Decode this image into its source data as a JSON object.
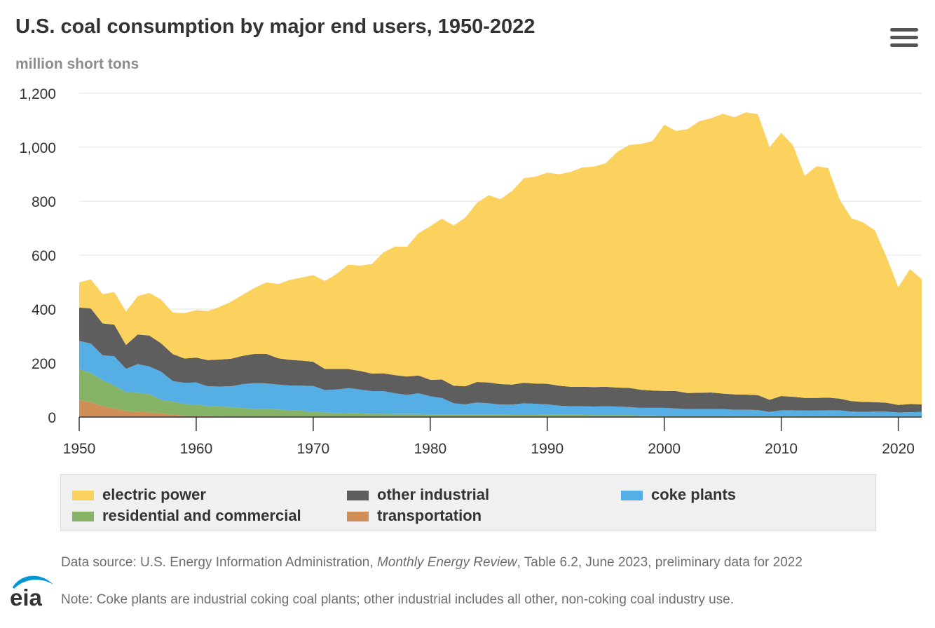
{
  "title": "U.S. coal consumption by major end users, 1950-2022",
  "units_label": "million short tons",
  "menu_icon": "hamburger-menu-icon",
  "colors": {
    "electric": "#fcd25f",
    "other": "#5e5e5e",
    "coke": "#55aee4",
    "residential": "#86b366",
    "transport": "#cf8f57",
    "grid": "#e2e2e2",
    "axis": "#333333"
  },
  "legend": {
    "electric": "electric power",
    "other": "other industrial",
    "coke": "coke plants",
    "residential": "residential and commercial",
    "transport": "transportation"
  },
  "source": {
    "prefix": "Data source: U.S. Energy Information Administration, ",
    "publication": "Monthly Energy Review",
    "suffix": ", Table 6.2, June 2023, preliminary data for 2022"
  },
  "note": "Note: Coke plants are industrial coking coal plants; other industrial includes all other, non-coking coal industry use.",
  "logo_text": "eia",
  "chart_data": {
    "type": "area",
    "stacked": true,
    "title": "U.S. coal consumption by major end users, 1950-2022",
    "ylabel": "million short tons",
    "xlabel": "",
    "xlim": [
      1950,
      2022
    ],
    "ylim": [
      0,
      1200
    ],
    "yticks": [
      0,
      200,
      400,
      600,
      800,
      1000,
      1200
    ],
    "ytick_labels": [
      "0",
      "200",
      "400",
      "600",
      "800",
      "1,000",
      "1,200"
    ],
    "xticks": [
      1950,
      1960,
      1970,
      1980,
      1990,
      2000,
      2010,
      2020
    ],
    "xtick_labels": [
      "1950",
      "1960",
      "1970",
      "1980",
      "1990",
      "2000",
      "2010",
      "2020"
    ],
    "legend_position": "bottom",
    "grid": true,
    "x": [
      1950,
      1951,
      1952,
      1953,
      1954,
      1955,
      1956,
      1957,
      1958,
      1959,
      1960,
      1961,
      1962,
      1963,
      1964,
      1965,
      1966,
      1967,
      1968,
      1969,
      1970,
      1971,
      1972,
      1973,
      1974,
      1975,
      1976,
      1977,
      1978,
      1979,
      1980,
      1981,
      1982,
      1983,
      1984,
      1985,
      1986,
      1987,
      1988,
      1989,
      1990,
      1991,
      1992,
      1993,
      1994,
      1995,
      1996,
      1997,
      1998,
      1999,
      2000,
      2001,
      2002,
      2003,
      2004,
      2005,
      2006,
      2007,
      2008,
      2009,
      2010,
      2011,
      2012,
      2013,
      2014,
      2015,
      2016,
      2017,
      2018,
      2019,
      2020,
      2021,
      2022
    ],
    "series": [
      {
        "name": "transportation",
        "key": "transport",
        "values": [
          63,
          55,
          40,
          32,
          22,
          20,
          17,
          14,
          8,
          6,
          4,
          3,
          2,
          2,
          1,
          1,
          1,
          1,
          1,
          1,
          1,
          1,
          1,
          1,
          1,
          1,
          1,
          1,
          1,
          1,
          1,
          1,
          1,
          1,
          1,
          1,
          1,
          1,
          1,
          1,
          1,
          1,
          1,
          1,
          1,
          1,
          1,
          1,
          1,
          1,
          1,
          1,
          1,
          1,
          1,
          1,
          1,
          1,
          1,
          1,
          1,
          1,
          1,
          1,
          1,
          1,
          1,
          1,
          1,
          1,
          1,
          1,
          1
        ]
      },
      {
        "name": "residential and commercial",
        "key": "residential",
        "values": [
          115,
          108,
          97,
          85,
          70,
          70,
          68,
          50,
          50,
          42,
          42,
          38,
          37,
          35,
          32,
          30,
          29,
          27,
          25,
          22,
          18,
          16,
          14,
          13,
          12,
          11,
          11,
          10,
          10,
          10,
          9,
          9,
          9,
          9,
          9,
          9,
          9,
          8,
          8,
          8,
          7,
          7,
          7,
          7,
          6,
          6,
          6,
          6,
          5,
          5,
          4,
          4,
          4,
          4,
          4,
          4,
          3,
          3,
          3,
          3,
          3,
          3,
          2,
          2,
          2,
          2,
          2,
          1,
          1,
          1,
          1,
          1,
          1
        ]
      },
      {
        "name": "coke plants",
        "key": "coke",
        "values": [
          104,
          109,
          92,
          108,
          87,
          106,
          102,
          104,
          75,
          79,
          82,
          73,
          74,
          77,
          89,
          95,
          95,
          92,
          91,
          93,
          96,
          83,
          87,
          93,
          89,
          84,
          84,
          77,
          71,
          77,
          67,
          61,
          41,
          37,
          44,
          41,
          36,
          37,
          42,
          40,
          39,
          34,
          32,
          32,
          32,
          33,
          32,
          30,
          28,
          28,
          29,
          27,
          24,
          25,
          25,
          24,
          23,
          23,
          22,
          15,
          21,
          21,
          21,
          21,
          22,
          22,
          17,
          17,
          18,
          18,
          15,
          16,
          17
        ]
      },
      {
        "name": "other industrial",
        "key": "other",
        "values": [
          124,
          130,
          118,
          117,
          88,
          110,
          115,
          105,
          100,
          90,
          92,
          97,
          100,
          102,
          105,
          108,
          109,
          98,
          95,
          93,
          90,
          78,
          76,
          71,
          69,
          65,
          66,
          67,
          68,
          66,
          61,
          68,
          65,
          67,
          76,
          77,
          76,
          74,
          76,
          75,
          76,
          74,
          72,
          72,
          72,
          72,
          70,
          71,
          67,
          64,
          63,
          64,
          60,
          60,
          61,
          58,
          57,
          56,
          55,
          45,
          53,
          50,
          47,
          47,
          47,
          43,
          39,
          37,
          35,
          33,
          28,
          30,
          28
        ]
      },
      {
        "name": "electric power",
        "key": "electric",
        "values": [
          93,
          108,
          108,
          121,
          124,
          142,
          158,
          162,
          154,
          168,
          176,
          182,
          195,
          212,
          227,
          245,
          265,
          275,
          296,
          308,
          321,
          326,
          353,
          387,
          390,
          406,
          448,
          477,
          481,
          527,
          569,
          596,
          594,
          625,
          664,
          694,
          685,
          718,
          758,
          767,
          783,
          784,
          796,
          813,
          817,
          829,
          874,
          900,
          911,
          925,
          986,
          964,
          978,
          1006,
          1016,
          1037,
          1027,
          1046,
          1041,
          936,
          975,
          932,
          823,
          858,
          851,
          738,
          678,
          665,
          637,
          540,
          436,
          500,
          464
        ]
      }
    ]
  }
}
